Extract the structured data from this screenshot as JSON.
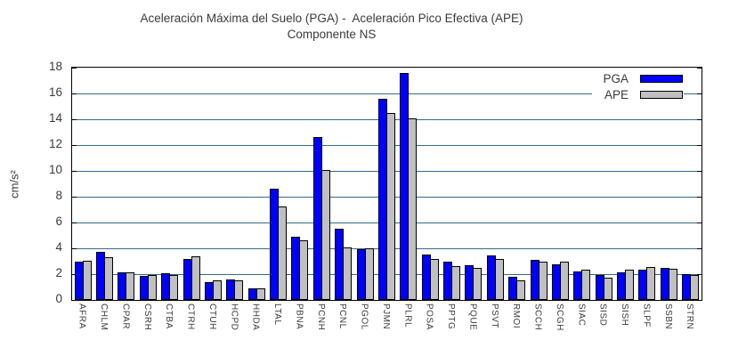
{
  "title": {
    "line1": "Aceleración Máxima del Suelo (PGA) -  Aceleración Pico Efectiva (APE)",
    "line2": "Componente NS"
  },
  "colors": {
    "pga": "#0000ff",
    "ape": "#c0c0c0",
    "grid": "#336b87",
    "axis": "#000000"
  },
  "chart_data": {
    "type": "bar",
    "title": "Aceleración Máxima del Suelo (PGA) -  Aceleración Pico Efectiva (APE)",
    "subtitle": "Componente NS",
    "xlabel": "",
    "ylabel": "cm/s²",
    "ylim": [
      0,
      18
    ],
    "ytick_step": 2,
    "grid": true,
    "legend_position": "top-right-inside",
    "categories": [
      "AFRA",
      "CHLM",
      "CPAR",
      "CSRH",
      "CTBA",
      "CTRH",
      "CTUH",
      "HCPD",
      "HHDA",
      "LTAL",
      "PBNA",
      "PCNH",
      "PCNL",
      "PGOL",
      "PJMN",
      "PLRL",
      "POSA",
      "PPTG",
      "PQUE",
      "PSVT",
      "RMOI",
      "SCCH",
      "SCGH",
      "SIAC",
      "SISD",
      "SISH",
      "SLPF",
      "SSBN",
      "STRN"
    ],
    "series": [
      {
        "name": "PGA",
        "color": "#0000ff",
        "values": [
          3.0,
          3.7,
          2.15,
          1.85,
          2.1,
          3.15,
          1.35,
          1.6,
          0.9,
          8.6,
          4.9,
          12.6,
          5.5,
          3.9,
          15.6,
          17.6,
          3.5,
          3.0,
          2.7,
          3.45,
          1.8,
          3.1,
          2.75,
          2.2,
          1.9,
          2.15,
          2.35,
          2.5,
          2.0
        ]
      },
      {
        "name": "APE",
        "color": "#c0c0c0",
        "values": [
          3.05,
          3.3,
          2.15,
          1.9,
          1.95,
          3.35,
          1.55,
          1.5,
          0.9,
          7.25,
          4.6,
          10.1,
          4.1,
          4.0,
          14.5,
          14.1,
          3.15,
          2.6,
          2.5,
          3.15,
          1.5,
          2.95,
          3.0,
          2.35,
          1.75,
          2.35,
          2.55,
          2.4,
          1.95
        ]
      }
    ]
  }
}
